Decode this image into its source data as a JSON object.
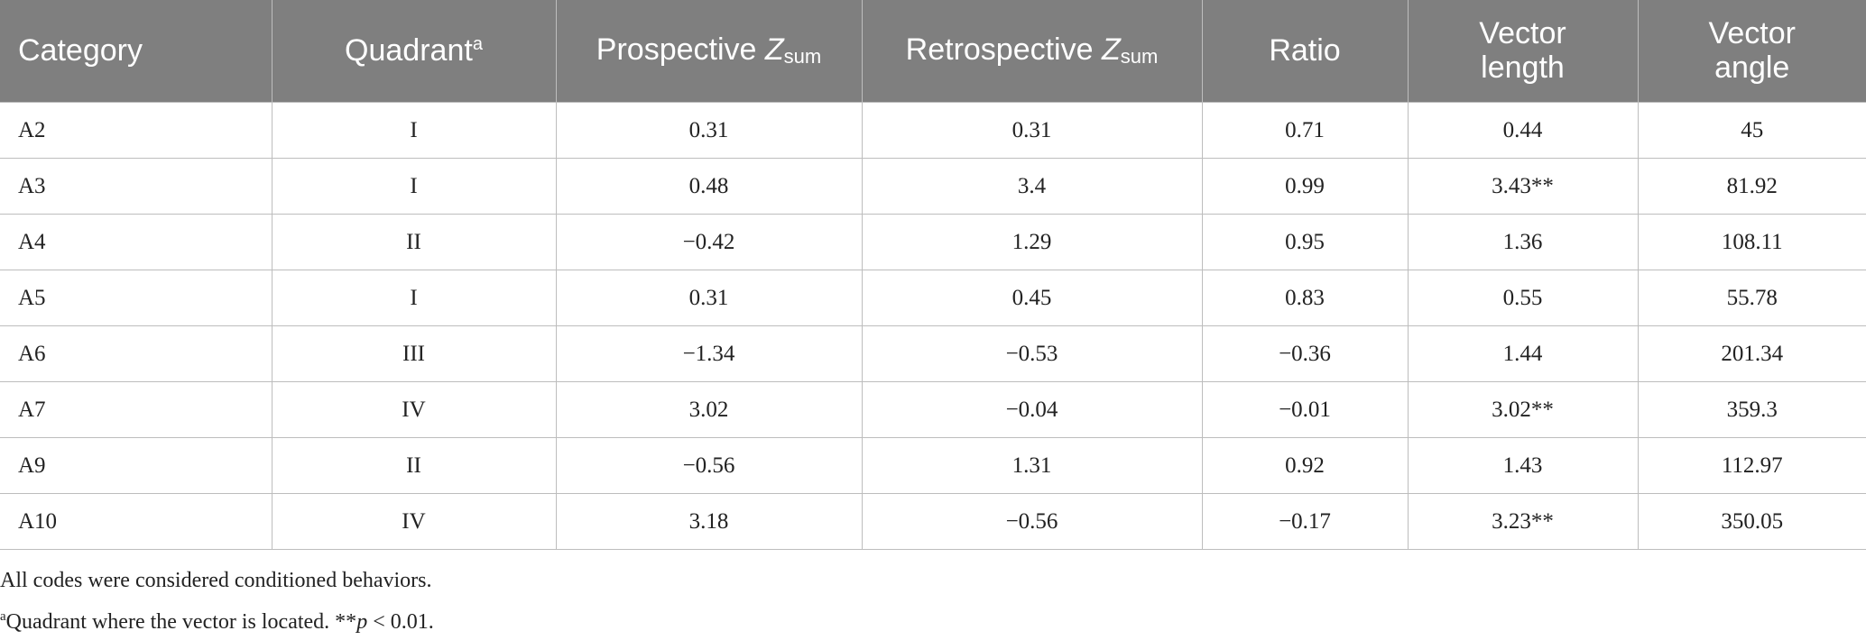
{
  "table": {
    "header": [
      {
        "text": "Category"
      },
      {
        "text": "Quadrant",
        "sup": "a"
      },
      {
        "text": "Prospective",
        "var": "Z",
        "sub": "sum"
      },
      {
        "text": "Retrospective",
        "var": "Z",
        "sub": "sum"
      },
      {
        "text": "Ratio"
      },
      {
        "text": "Vector length"
      },
      {
        "text": "Vector angle"
      }
    ],
    "rows": [
      [
        "A2",
        "I",
        "0.31",
        "0.31",
        "0.71",
        "0.44",
        "45"
      ],
      [
        "A3",
        "I",
        "0.48",
        "3.4",
        "0.99",
        "3.43**",
        "81.92"
      ],
      [
        "A4",
        "II",
        "−0.42",
        "1.29",
        "0.95",
        "1.36",
        "108.11"
      ],
      [
        "A5",
        "I",
        "0.31",
        "0.45",
        "0.83",
        "0.55",
        "55.78"
      ],
      [
        "A6",
        "III",
        "−1.34",
        "−0.53",
        "−0.36",
        "1.44",
        "201.34"
      ],
      [
        "A7",
        "IV",
        "3.02",
        "−0.04",
        "−0.01",
        "3.02**",
        "359.3"
      ],
      [
        "A9",
        "II",
        "−0.56",
        "1.31",
        "0.92",
        "1.43",
        "112.97"
      ],
      [
        "A10",
        "IV",
        "3.18",
        "−0.56",
        "−0.17",
        "3.23**",
        "350.05"
      ]
    ]
  },
  "footnotes": [
    {
      "text": "All codes were considered conditioned behaviors."
    },
    {
      "sup": "a",
      "text": "Quadrant where the vector is located. **",
      "var": "p",
      "rest": " < 0.01."
    }
  ]
}
